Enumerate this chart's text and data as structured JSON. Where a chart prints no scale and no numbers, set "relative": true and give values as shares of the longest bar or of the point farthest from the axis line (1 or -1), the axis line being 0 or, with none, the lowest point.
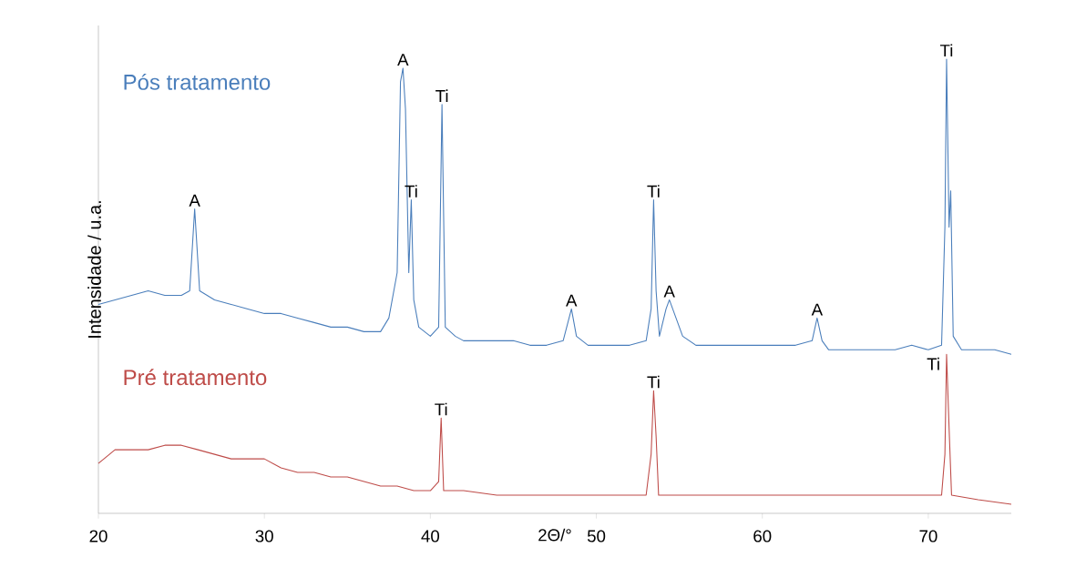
{
  "chart_data": {
    "type": "line",
    "relative": true,
    "xlabel": "2Θ/°",
    "ylabel": "Intensidade / u.a.",
    "xlim": [
      20,
      75
    ],
    "xticks": [
      20,
      30,
      40,
      50,
      60,
      70
    ],
    "grid": false,
    "marker": "none",
    "line_style": "solid",
    "series": [
      {
        "name": "Pós tratamento",
        "color": "#4a7ebb",
        "x": [
          20,
          21,
          22,
          23,
          24,
          25,
          25.5,
          25.8,
          26.1,
          27,
          28,
          29,
          30,
          31,
          32,
          33,
          34,
          35,
          36,
          37,
          37.5,
          38,
          38.2,
          38.35,
          38.5,
          38.7,
          38.85,
          39,
          39.3,
          40,
          40.5,
          40.7,
          40.9,
          41.5,
          42,
          43,
          44,
          45,
          46,
          47,
          48,
          48.5,
          48.8,
          49.5,
          50,
          51,
          52,
          53,
          53.3,
          53.45,
          53.6,
          53.8,
          54.2,
          54.4,
          54.7,
          55.2,
          56,
          57,
          58,
          59,
          60,
          61,
          62,
          63,
          63.3,
          63.6,
          64,
          65,
          66,
          67,
          68,
          69,
          70,
          70.8,
          71,
          71.1,
          71.25,
          71.35,
          71.5,
          72,
          73,
          74,
          75
        ],
        "values": [
          0.46,
          0.47,
          0.48,
          0.49,
          0.48,
          0.48,
          0.49,
          0.67,
          0.49,
          0.47,
          0.46,
          0.45,
          0.44,
          0.44,
          0.43,
          0.42,
          0.41,
          0.41,
          0.4,
          0.4,
          0.43,
          0.53,
          0.95,
          0.98,
          0.89,
          0.53,
          0.69,
          0.47,
          0.41,
          0.39,
          0.41,
          0.9,
          0.41,
          0.39,
          0.38,
          0.38,
          0.38,
          0.38,
          0.37,
          0.37,
          0.38,
          0.45,
          0.39,
          0.37,
          0.37,
          0.37,
          0.37,
          0.38,
          0.45,
          0.69,
          0.49,
          0.39,
          0.45,
          0.47,
          0.44,
          0.39,
          0.37,
          0.37,
          0.37,
          0.37,
          0.37,
          0.37,
          0.37,
          0.38,
          0.43,
          0.38,
          0.36,
          0.36,
          0.36,
          0.36,
          0.36,
          0.37,
          0.36,
          0.37,
          0.63,
          1.0,
          0.63,
          0.71,
          0.39,
          0.36,
          0.36,
          0.36,
          0.35
        ]
      },
      {
        "name": "Pré tratamento",
        "color": "#be4b48",
        "x": [
          20,
          21,
          22,
          23,
          24,
          25,
          26,
          27,
          28,
          29,
          30,
          31,
          32,
          33,
          34,
          35,
          36,
          37,
          38,
          39,
          40,
          40.5,
          40.65,
          40.8,
          42,
          44,
          46,
          48,
          50,
          52,
          53,
          53.3,
          53.45,
          53.6,
          53.75,
          55,
          57,
          59,
          61,
          63,
          65,
          67,
          69,
          70.8,
          71,
          71.1,
          71.25,
          71.4,
          73,
          75
        ],
        "values": [
          0.11,
          0.14,
          0.14,
          0.14,
          0.15,
          0.15,
          0.14,
          0.13,
          0.12,
          0.12,
          0.12,
          0.1,
          0.09,
          0.09,
          0.08,
          0.08,
          0.07,
          0.06,
          0.06,
          0.05,
          0.05,
          0.07,
          0.21,
          0.05,
          0.05,
          0.04,
          0.04,
          0.04,
          0.04,
          0.04,
          0.04,
          0.13,
          0.27,
          0.17,
          0.04,
          0.04,
          0.04,
          0.04,
          0.04,
          0.04,
          0.04,
          0.04,
          0.04,
          0.04,
          0.13,
          0.35,
          0.19,
          0.04,
          0.03,
          0.02
        ]
      }
    ],
    "annotations": [
      {
        "text": "A",
        "x": 25.8,
        "y": 0.67
      },
      {
        "text": "A",
        "x": 38.35,
        "y": 0.98
      },
      {
        "text": "Ti",
        "x": 38.85,
        "y": 0.69
      },
      {
        "text": "Ti",
        "x": 40.7,
        "y": 0.9
      },
      {
        "text": "A",
        "x": 48.5,
        "y": 0.45
      },
      {
        "text": "Ti",
        "x": 53.45,
        "y": 0.69
      },
      {
        "text": "A",
        "x": 54.4,
        "y": 0.47
      },
      {
        "text": "A",
        "x": 63.3,
        "y": 0.43
      },
      {
        "text": "Ti",
        "x": 71.1,
        "y": 1.0
      },
      {
        "text": "Ti",
        "x": 40.65,
        "y": 0.21
      },
      {
        "text": "Ti",
        "x": 53.45,
        "y": 0.27
      },
      {
        "text": "Ti",
        "x": 71.1,
        "y": 0.35
      }
    ]
  }
}
